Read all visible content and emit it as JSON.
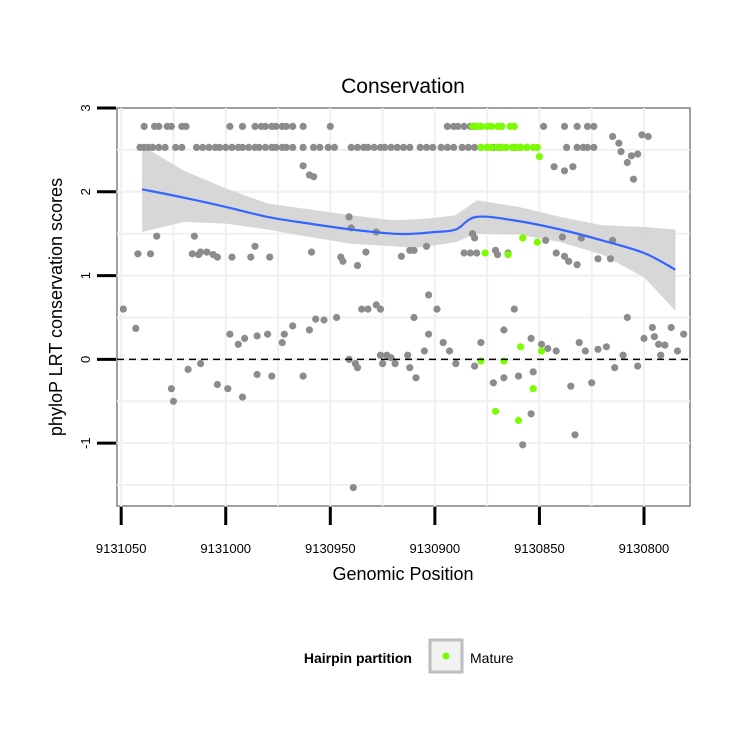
{
  "chart_data": {
    "type": "scatter",
    "title": "Conservation",
    "xlabel": "Genomic Position",
    "ylabel": "phyloP LRT conservation scores",
    "x_reversed": true,
    "xlim": [
      9131052,
      9130778
    ],
    "ylim": [
      -1.75,
      3
    ],
    "x_ticks": [
      9131050,
      9131000,
      9130950,
      9130900,
      9130850,
      9130800
    ],
    "y_ticks": [
      -1,
      0,
      1,
      2,
      3
    ],
    "x_tick_labels": [
      "9131050",
      "9131000",
      "9130950",
      "9130900",
      "9130850",
      "9130800"
    ],
    "y_tick_labels": [
      "-1",
      "0",
      "1",
      "2",
      "3"
    ],
    "reference_line": {
      "y": 0,
      "style": "dashed"
    },
    "grid": true,
    "legend": {
      "title": "Hairpin partition",
      "placement": "bottom",
      "entries": [
        "Mature"
      ]
    },
    "colors": {
      "other": "#8c8c8c",
      "mature": "#7cfc00",
      "smooth": "#3366ff",
      "ribbon": "#d3d3d3"
    },
    "series": [
      {
        "color": "#8c8c8c",
        "points": [
          [
            9131039,
            2.78
          ],
          [
            9131034,
            2.78
          ],
          [
            9131032,
            2.78
          ],
          [
            9131028,
            2.78
          ],
          [
            9131026,
            2.78
          ],
          [
            9131021,
            2.78
          ],
          [
            9131019,
            2.78
          ],
          [
            9130998,
            2.78
          ],
          [
            9130992,
            2.78
          ],
          [
            9130986,
            2.78
          ],
          [
            9130983,
            2.78
          ],
          [
            9130981,
            2.78
          ],
          [
            9130978,
            2.78
          ],
          [
            9130976,
            2.78
          ],
          [
            9130973,
            2.78
          ],
          [
            9130971,
            2.78
          ],
          [
            9130968,
            2.78
          ],
          [
            9130963,
            2.78
          ],
          [
            9130950,
            2.78
          ],
          [
            9130894,
            2.78
          ],
          [
            9130891,
            2.78
          ],
          [
            9130889,
            2.78
          ],
          [
            9130886,
            2.78
          ],
          [
            9130883,
            2.78
          ],
          [
            9130881,
            2.78
          ],
          [
            9130878,
            2.78
          ],
          [
            9130848,
            2.78
          ],
          [
            9130838,
            2.78
          ],
          [
            9130832,
            2.78
          ],
          [
            9130827,
            2.78
          ],
          [
            9130824,
            2.78
          ],
          [
            9131041,
            2.53
          ],
          [
            9131039,
            2.53
          ],
          [
            9131037,
            2.53
          ],
          [
            9131035,
            2.53
          ],
          [
            9131032,
            2.53
          ],
          [
            9131029,
            2.53
          ],
          [
            9131024,
            2.53
          ],
          [
            9131021,
            2.53
          ],
          [
            9131014,
            2.53
          ],
          [
            9131011,
            2.53
          ],
          [
            9131008,
            2.53
          ],
          [
            9131005,
            2.53
          ],
          [
            9131003,
            2.53
          ],
          [
            9131000,
            2.53
          ],
          [
            9130997,
            2.53
          ],
          [
            9130994,
            2.53
          ],
          [
            9130992,
            2.53
          ],
          [
            9130989,
            2.53
          ],
          [
            9130986,
            2.53
          ],
          [
            9130984,
            2.53
          ],
          [
            9130981,
            2.53
          ],
          [
            9130978,
            2.53
          ],
          [
            9130976,
            2.53
          ],
          [
            9130973,
            2.53
          ],
          [
            9130971,
            2.53
          ],
          [
            9130968,
            2.53
          ],
          [
            9130963,
            2.53
          ],
          [
            9130958,
            2.53
          ],
          [
            9130955,
            2.53
          ],
          [
            9130951,
            2.53
          ],
          [
            9130948,
            2.53
          ],
          [
            9130940,
            2.53
          ],
          [
            9130937,
            2.53
          ],
          [
            9130934,
            2.53
          ],
          [
            9130932,
            2.53
          ],
          [
            9130929,
            2.53
          ],
          [
            9130926,
            2.53
          ],
          [
            9130924,
            2.53
          ],
          [
            9130921,
            2.53
          ],
          [
            9130918,
            2.53
          ],
          [
            9130915,
            2.53
          ],
          [
            9130912,
            2.53
          ],
          [
            9130907,
            2.53
          ],
          [
            9130904,
            2.53
          ],
          [
            9130901,
            2.53
          ],
          [
            9130897,
            2.53
          ],
          [
            9130894,
            2.53
          ],
          [
            9130891,
            2.53
          ],
          [
            9130887,
            2.53
          ],
          [
            9130884,
            2.53
          ],
          [
            9130881,
            2.53
          ],
          [
            9130878,
            2.53
          ],
          [
            9130875,
            2.53
          ],
          [
            9130872,
            2.53
          ],
          [
            9130869,
            2.53
          ],
          [
            9130866,
            2.53
          ],
          [
            9130862,
            2.53
          ],
          [
            9130859,
            2.53
          ],
          [
            9130856,
            2.53
          ],
          [
            9130837,
            2.53
          ],
          [
            9130832,
            2.53
          ],
          [
            9130829,
            2.53
          ],
          [
            9130827,
            2.53
          ],
          [
            9130824,
            2.53
          ],
          [
            9130812,
            2.58
          ],
          [
            9130815,
            2.66
          ],
          [
            9130801,
            2.68
          ],
          [
            9130798,
            2.66
          ],
          [
            9130811,
            2.48
          ],
          [
            9130806,
            2.43
          ],
          [
            9130803,
            2.45
          ],
          [
            9130808,
            2.35
          ],
          [
            9130805,
            2.15
          ],
          [
            9130838,
            2.25
          ],
          [
            9130843,
            2.3
          ],
          [
            9130834,
            2.3
          ],
          [
            9130963,
            2.31
          ],
          [
            9130960,
            2.2
          ],
          [
            9130958,
            2.18
          ],
          [
            9130941,
            1.7
          ],
          [
            9130940,
            1.57
          ],
          [
            9130928,
            1.52
          ],
          [
            9130882,
            1.5
          ],
          [
            9130881,
            1.45
          ],
          [
            9130847,
            1.42
          ],
          [
            9130839,
            1.46
          ],
          [
            9130830,
            1.45
          ],
          [
            9130815,
            1.42
          ],
          [
            9130904,
            1.35
          ],
          [
            9130910,
            1.3
          ],
          [
            9130865,
            1.27
          ],
          [
            9130871,
            1.3
          ],
          [
            9130883,
            1.27
          ],
          [
            9130880,
            1.27
          ],
          [
            9131033,
            1.47
          ],
          [
            9131036,
            1.26
          ],
          [
            9131042,
            1.26
          ],
          [
            9131016,
            1.26
          ],
          [
            9131012,
            1.28
          ],
          [
            9131013,
            1.25
          ],
          [
            9131009,
            1.28
          ],
          [
            9131006,
            1.25
          ],
          [
            9131004,
            1.22
          ],
          [
            9130997,
            1.22
          ],
          [
            9130988,
            1.22
          ],
          [
            9130986,
            1.35
          ],
          [
            9130979,
            1.22
          ],
          [
            9130959,
            1.28
          ],
          [
            9130945,
            1.22
          ],
          [
            9130944,
            1.17
          ],
          [
            9130937,
            1.12
          ],
          [
            9130933,
            1.28
          ],
          [
            9130916,
            1.23
          ],
          [
            9130912,
            1.3
          ],
          [
            9130886,
            1.27
          ],
          [
            9130870,
            1.25
          ],
          [
            9130842,
            1.27
          ],
          [
            9130838,
            1.23
          ],
          [
            9130836,
            1.17
          ],
          [
            9130832,
            1.13
          ],
          [
            9130822,
            1.2
          ],
          [
            9130816,
            1.2
          ],
          [
            9131015,
            1.47
          ],
          [
            9131049,
            0.6
          ],
          [
            9131043,
            0.37
          ],
          [
            9130935,
            0.6
          ],
          [
            9130932,
            0.6
          ],
          [
            9130928,
            0.65
          ],
          [
            9130926,
            0.6
          ],
          [
            9130903,
            0.77
          ],
          [
            9130899,
            0.6
          ],
          [
            9130947,
            0.5
          ],
          [
            9130953,
            0.47
          ],
          [
            9130957,
            0.48
          ],
          [
            9130968,
            0.4
          ],
          [
            9130960,
            0.35
          ],
          [
            9130972,
            0.3
          ],
          [
            9130973,
            0.2
          ],
          [
            9130980,
            0.3
          ],
          [
            9130985,
            0.28
          ],
          [
            9130991,
            0.25
          ],
          [
            9130998,
            0.3
          ],
          [
            9130994,
            0.18
          ],
          [
            9130926,
            0.05
          ],
          [
            9130923,
            0.05
          ],
          [
            9130910,
            0.5
          ],
          [
            9130903,
            0.3
          ],
          [
            9130896,
            0.2
          ],
          [
            9130893,
            0.1
          ],
          [
            9130905,
            0.1
          ],
          [
            9130913,
            0.05
          ],
          [
            9130921,
            0.02
          ],
          [
            9130878,
            0.2
          ],
          [
            9130867,
            0.35
          ],
          [
            9130862,
            0.6
          ],
          [
            9130854,
            0.25
          ],
          [
            9130849,
            0.18
          ],
          [
            9130846,
            0.13
          ],
          [
            9130842,
            0.1
          ],
          [
            9130831,
            0.2
          ],
          [
            9130808,
            0.5
          ],
          [
            9130800,
            0.25
          ],
          [
            9130796,
            0.38
          ],
          [
            9130795,
            0.27
          ],
          [
            9130793,
            0.18
          ],
          [
            9130792,
            0.05
          ],
          [
            9130790,
            0.17
          ],
          [
            9130787,
            0.38
          ],
          [
            9130784,
            0.1
          ],
          [
            9130781,
            0.3
          ],
          [
            9130828,
            0.1
          ],
          [
            9130822,
            0.12
          ],
          [
            9130818,
            0.15
          ],
          [
            9130810,
            0.05
          ],
          [
            9130941,
            0.0
          ],
          [
            9130938,
            -0.05
          ],
          [
            9130937,
            -0.1
          ],
          [
            9130925,
            -0.05
          ],
          [
            9130919,
            -0.05
          ],
          [
            9130912,
            -0.1
          ],
          [
            9130890,
            -0.05
          ],
          [
            9130881,
            -0.08
          ],
          [
            9130963,
            -0.2
          ],
          [
            9130978,
            -0.2
          ],
          [
            9130985,
            -0.18
          ],
          [
            9131026,
            -0.35
          ],
          [
            9131004,
            -0.3
          ],
          [
            9130999,
            -0.35
          ],
          [
            9130992,
            -0.45
          ],
          [
            9130909,
            -0.22
          ],
          [
            9130867,
            -0.22
          ],
          [
            9130872,
            -0.28
          ],
          [
            9130860,
            -0.2
          ],
          [
            9130853,
            -0.15
          ],
          [
            9130835,
            -0.32
          ],
          [
            9130825,
            -0.28
          ],
          [
            9130814,
            -0.1
          ],
          [
            9130803,
            -0.08
          ],
          [
            9131012,
            -0.05
          ],
          [
            9131018,
            -0.12
          ],
          [
            9131025,
            -0.5
          ],
          [
            9130854,
            -0.65
          ],
          [
            9130858,
            -1.02
          ],
          [
            9130833,
            -0.9
          ],
          [
            9130939,
            -1.53
          ]
        ]
      },
      {
        "name": "Mature",
        "color": "#7cfc00",
        "points": [
          [
            9130882,
            2.78
          ],
          [
            9130880,
            2.78
          ],
          [
            9130878,
            2.78
          ],
          [
            9130875,
            2.78
          ],
          [
            9130873,
            2.78
          ],
          [
            9130870,
            2.78
          ],
          [
            9130868,
            2.78
          ],
          [
            9130864,
            2.78
          ],
          [
            9130862,
            2.78
          ],
          [
            9130878,
            2.53
          ],
          [
            9130875,
            2.53
          ],
          [
            9130873,
            2.53
          ],
          [
            9130870,
            2.53
          ],
          [
            9130868,
            2.53
          ],
          [
            9130866,
            2.53
          ],
          [
            9130863,
            2.53
          ],
          [
            9130861,
            2.53
          ],
          [
            9130859,
            2.53
          ],
          [
            9130856,
            2.53
          ],
          [
            9130853,
            2.53
          ],
          [
            9130851,
            2.53
          ],
          [
            9130850,
            2.42
          ],
          [
            9130858,
            1.45
          ],
          [
            9130851,
            1.4
          ],
          [
            9130876,
            1.27
          ],
          [
            9130865,
            1.25
          ],
          [
            9130878,
            -0.02
          ],
          [
            9130867,
            -0.02
          ],
          [
            9130859,
            0.15
          ],
          [
            9130849,
            0.1
          ],
          [
            9130871,
            -0.62
          ],
          [
            9130853,
            -0.35
          ],
          [
            9130860,
            -0.73
          ]
        ]
      }
    ],
    "smooth": {
      "x": [
        9131040,
        9131020,
        9131000,
        9130980,
        9130960,
        9130940,
        9130920,
        9130910,
        9130900,
        9130890,
        9130880,
        9130860,
        9130840,
        9130820,
        9130800,
        9130785
      ],
      "y": [
        2.03,
        1.93,
        1.82,
        1.7,
        1.62,
        1.55,
        1.5,
        1.5,
        1.52,
        1.55,
        1.7,
        1.65,
        1.55,
        1.42,
        1.27,
        1.07
      ],
      "lower": [
        1.52,
        1.64,
        1.62,
        1.55,
        1.46,
        1.38,
        1.35,
        1.33,
        1.36,
        1.4,
        1.5,
        1.49,
        1.4,
        1.25,
        0.98,
        0.58
      ],
      "upper": [
        2.55,
        2.25,
        2.04,
        1.86,
        1.79,
        1.72,
        1.66,
        1.67,
        1.69,
        1.72,
        1.9,
        1.82,
        1.7,
        1.6,
        1.58,
        1.55
      ]
    }
  }
}
